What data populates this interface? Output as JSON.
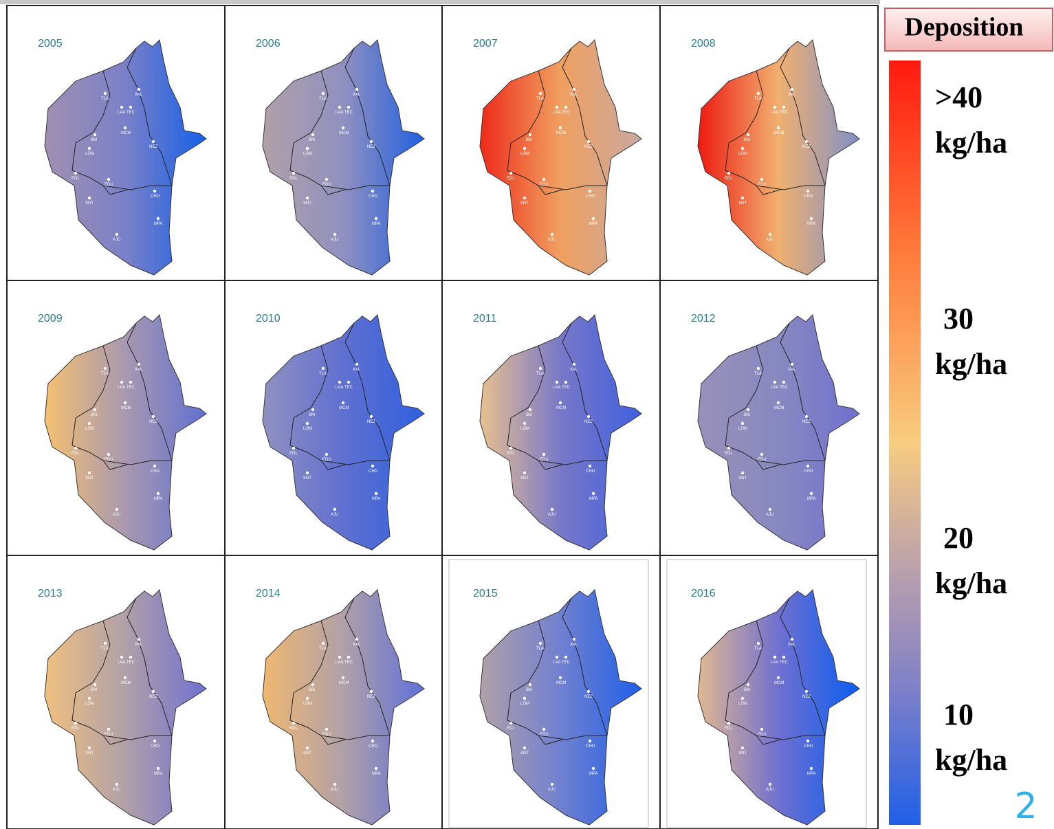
{
  "maps": [
    {
      "year": "2005"
    },
    {
      "year": "2006"
    },
    {
      "year": "2007"
    },
    {
      "year": "2008"
    },
    {
      "year": "2009"
    },
    {
      "year": "2010"
    },
    {
      "year": "2011"
    },
    {
      "year": "2012"
    },
    {
      "year": "2013"
    },
    {
      "year": "2014"
    },
    {
      "year": "2015"
    },
    {
      "year": "2016"
    }
  ],
  "stations": [
    "TLA",
    "XAL",
    "LAA",
    "TEC",
    "BM",
    "MCM",
    "LOM",
    "NEZ",
    "EDL",
    "EDU",
    "SNT",
    "CHO",
    "MPA",
    "AJU"
  ],
  "legend": {
    "title": "Deposition",
    "labels": [
      {
        "value": ">40",
        "unit": "kg/ha"
      },
      {
        "value": "30",
        "unit": "kg/ha"
      },
      {
        "value": "20",
        "unit": "kg/ha"
      },
      {
        "value": "10",
        "unit": "kg/ha"
      }
    ]
  },
  "page_number": "2"
}
